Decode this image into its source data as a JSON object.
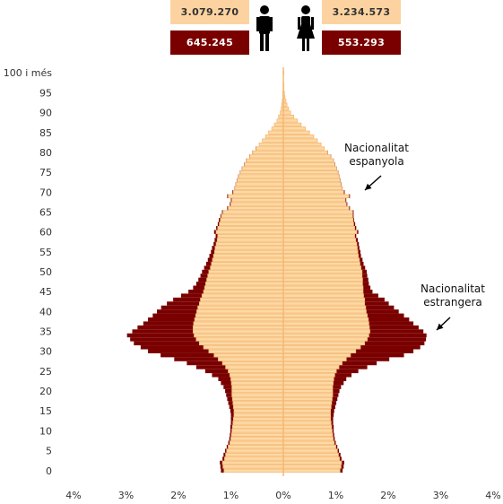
{
  "header": {
    "men_spanish": "3.079.270",
    "women_spanish": "3.234.573",
    "men_foreign": "645.245",
    "women_foreign": "553.293"
  },
  "icons": {
    "men": "man-icon",
    "women": "woman-icon"
  },
  "colors": {
    "spanish_fill": "#fdd9a5",
    "spanish_stroke": "#f5b870",
    "foreign_fill": "#7a0000",
    "axis": "#f5b870"
  },
  "chart_data": {
    "type": "bar",
    "orientation": "horizontal",
    "layout": "population-pyramid",
    "xlim": [
      -4,
      4
    ],
    "x_tick_labels": [
      "4%",
      "3%",
      "2%",
      "1%",
      "0%",
      "1%",
      "2%",
      "3%",
      "4%"
    ],
    "y_tick_labels": [
      "0",
      "5",
      "10",
      "15",
      "20",
      "25",
      "30",
      "35",
      "40",
      "45",
      "50",
      "55",
      "60",
      "65",
      "70",
      "75",
      "80",
      "85",
      "90",
      "95",
      "100 i més"
    ],
    "ages": [
      0,
      1,
      2,
      3,
      4,
      5,
      6,
      7,
      8,
      9,
      10,
      11,
      12,
      13,
      14,
      15,
      16,
      17,
      18,
      19,
      20,
      21,
      22,
      23,
      24,
      25,
      26,
      27,
      28,
      29,
      30,
      31,
      32,
      33,
      34,
      35,
      36,
      37,
      38,
      39,
      40,
      41,
      42,
      43,
      44,
      45,
      46,
      47,
      48,
      49,
      50,
      51,
      52,
      53,
      54,
      55,
      56,
      57,
      58,
      59,
      60,
      61,
      62,
      63,
      64,
      65,
      66,
      67,
      68,
      69,
      70,
      71,
      72,
      73,
      74,
      75,
      76,
      77,
      78,
      79,
      80,
      81,
      82,
      83,
      84,
      85,
      86,
      87,
      88,
      89,
      90,
      91,
      92,
      93,
      94,
      95,
      96,
      97,
      98,
      99,
      100
    ],
    "series": [
      {
        "name": "Nacionalitat espanyola",
        "men": [
          1.13,
          1.15,
          1.16,
          1.12,
          1.1,
          1.08,
          1.05,
          1.02,
          1.0,
          0.99,
          0.98,
          0.97,
          0.96,
          0.95,
          0.94,
          0.94,
          0.95,
          0.96,
          0.97,
          0.98,
          0.98,
          0.98,
          0.99,
          1.0,
          1.02,
          1.05,
          1.1,
          1.16,
          1.24,
          1.32,
          1.42,
          1.52,
          1.6,
          1.66,
          1.7,
          1.72,
          1.72,
          1.71,
          1.69,
          1.67,
          1.65,
          1.63,
          1.6,
          1.58,
          1.55,
          1.52,
          1.5,
          1.48,
          1.46,
          1.44,
          1.42,
          1.39,
          1.37,
          1.35,
          1.33,
          1.31,
          1.3,
          1.28,
          1.26,
          1.25,
          1.28,
          1.25,
          1.22,
          1.2,
          1.18,
          1.15,
          1.05,
          1.0,
          0.98,
          1.05,
          0.95,
          0.92,
          0.9,
          0.88,
          0.85,
          0.82,
          0.78,
          0.74,
          0.7,
          0.64,
          0.58,
          0.52,
          0.46,
          0.4,
          0.34,
          0.28,
          0.22,
          0.17,
          0.12,
          0.09,
          0.06,
          0.04,
          0.03,
          0.02,
          0.01,
          0.01,
          0.0,
          0.0,
          0.0,
          0.0,
          0.0
        ],
        "women": [
          1.08,
          1.1,
          1.11,
          1.07,
          1.05,
          1.03,
          1.0,
          0.97,
          0.95,
          0.94,
          0.93,
          0.92,
          0.91,
          0.9,
          0.9,
          0.9,
          0.91,
          0.92,
          0.93,
          0.94,
          0.94,
          0.94,
          0.95,
          0.96,
          0.98,
          1.01,
          1.06,
          1.12,
          1.2,
          1.28,
          1.38,
          1.47,
          1.55,
          1.6,
          1.63,
          1.65,
          1.64,
          1.63,
          1.62,
          1.6,
          1.58,
          1.57,
          1.55,
          1.55,
          1.53,
          1.52,
          1.52,
          1.51,
          1.51,
          1.5,
          1.5,
          1.48,
          1.46,
          1.45,
          1.43,
          1.42,
          1.41,
          1.4,
          1.38,
          1.36,
          1.4,
          1.36,
          1.34,
          1.33,
          1.32,
          1.32,
          1.25,
          1.2,
          1.18,
          1.25,
          1.15,
          1.12,
          1.1,
          1.08,
          1.06,
          1.04,
          1.01,
          0.98,
          0.95,
          0.9,
          0.84,
          0.78,
          0.72,
          0.65,
          0.58,
          0.5,
          0.42,
          0.34,
          0.27,
          0.2,
          0.14,
          0.1,
          0.07,
          0.05,
          0.03,
          0.02,
          0.01,
          0.01,
          0.0,
          0.0,
          0.01
        ]
      },
      {
        "name": "Nacionalitat estrangera",
        "men": [
          0.06,
          0.05,
          0.05,
          0.04,
          0.04,
          0.03,
          0.03,
          0.03,
          0.03,
          0.03,
          0.03,
          0.04,
          0.04,
          0.05,
          0.06,
          0.07,
          0.08,
          0.09,
          0.1,
          0.11,
          0.13,
          0.16,
          0.2,
          0.24,
          0.34,
          0.44,
          0.56,
          0.68,
          0.84,
          1.02,
          1.16,
          1.2,
          1.25,
          1.26,
          1.28,
          1.16,
          1.06,
          0.96,
          0.89,
          0.82,
          0.76,
          0.7,
          0.62,
          0.52,
          0.4,
          0.29,
          0.22,
          0.18,
          0.16,
          0.14,
          0.13,
          0.12,
          0.1,
          0.09,
          0.08,
          0.07,
          0.06,
          0.05,
          0.05,
          0.04,
          0.04,
          0.03,
          0.03,
          0.03,
          0.02,
          0.02,
          0.02,
          0.02,
          0.02,
          0.02,
          0.02,
          0.01,
          0.01,
          0.01,
          0.01,
          0.01,
          0.01,
          0.01,
          0.01,
          0.01,
          0.01,
          0.01,
          0.0,
          0.0,
          0.0,
          0.0,
          0.0,
          0.0,
          0.0,
          0.0,
          0.0,
          0.0,
          0.0,
          0.0,
          0.0,
          0.0,
          0.0,
          0.0,
          0.0,
          0.0,
          0.0
        ],
        "women": [
          0.05,
          0.05,
          0.05,
          0.04,
          0.04,
          0.03,
          0.03,
          0.03,
          0.03,
          0.03,
          0.03,
          0.04,
          0.04,
          0.05,
          0.06,
          0.07,
          0.08,
          0.09,
          0.1,
          0.11,
          0.13,
          0.16,
          0.2,
          0.24,
          0.32,
          0.42,
          0.54,
          0.66,
          0.82,
          1.02,
          1.1,
          1.14,
          1.14,
          1.12,
          1.1,
          1.02,
          0.94,
          0.85,
          0.78,
          0.7,
          0.62,
          0.54,
          0.46,
          0.38,
          0.28,
          0.18,
          0.14,
          0.12,
          0.11,
          0.1,
          0.09,
          0.08,
          0.07,
          0.06,
          0.05,
          0.05,
          0.04,
          0.04,
          0.04,
          0.03,
          0.03,
          0.03,
          0.03,
          0.02,
          0.02,
          0.02,
          0.02,
          0.02,
          0.02,
          0.02,
          0.02,
          0.01,
          0.01,
          0.01,
          0.01,
          0.01,
          0.01,
          0.01,
          0.01,
          0.01,
          0.01,
          0.0,
          0.0,
          0.0,
          0.0,
          0.0,
          0.0,
          0.0,
          0.0,
          0.0,
          0.0,
          0.0,
          0.0,
          0.0,
          0.0,
          0.0,
          0.0,
          0.0,
          0.0,
          0.0,
          0.0
        ]
      }
    ],
    "annotations": [
      {
        "lines": [
          "Nacionalitat",
          "espanyola"
        ],
        "series": "Nacionalitat espanyola"
      },
      {
        "lines": [
          "Nacionalitat",
          "estrangera"
        ],
        "series": "Nacionalitat estrangera"
      }
    ]
  }
}
